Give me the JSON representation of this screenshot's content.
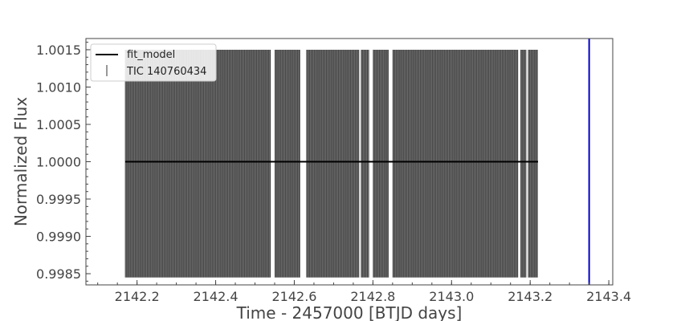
{
  "chart_data": {
    "type": "line",
    "xlabel": "Time - 2457000 [BTJD days]",
    "ylabel": "Normalized Flux",
    "xlim": [
      2142.07,
      2143.41
    ],
    "ylim": [
      0.99835,
      1.00165
    ],
    "xticks": [
      2142.2,
      2142.4,
      2142.6,
      2142.8,
      2143.0,
      2143.2,
      2143.4
    ],
    "xtick_labels": [
      "2142.2",
      "2142.4",
      "2142.6",
      "2142.8",
      "2143.0",
      "2143.2",
      "2143.4"
    ],
    "yticks": [
      0.9985,
      0.999,
      0.9995,
      1.0,
      1.0005,
      1.001,
      1.0015
    ],
    "ytick_labels": [
      "0.9985",
      "0.9990",
      "0.9995",
      "1.0000",
      "1.0005",
      "1.0010",
      "1.0015"
    ],
    "grid": false,
    "legend_position": "top-left",
    "series": [
      {
        "name": "fit_model",
        "kind": "line",
        "color": "#000000",
        "x": [
          2142.17,
          2143.22
        ],
        "y": [
          1.0,
          1.0
        ]
      },
      {
        "name": "TIC 140760434",
        "kind": "errorbar",
        "color": "#333333",
        "x_start": 2142.17,
        "x_end": 2143.22,
        "cadence_days": 0.001389,
        "y_low": 0.99845,
        "y_high": 1.0015,
        "gaps": [
          [
            2142.54,
            2142.55
          ],
          [
            2142.615,
            2142.63
          ],
          [
            2142.765,
            2142.77
          ],
          [
            2142.79,
            2142.8
          ],
          [
            2142.84,
            2142.85
          ],
          [
            2143.17,
            2143.175
          ],
          [
            2143.19,
            2143.195
          ]
        ]
      }
    ],
    "vline": {
      "x": 2143.35,
      "color": "#0000cc"
    }
  }
}
